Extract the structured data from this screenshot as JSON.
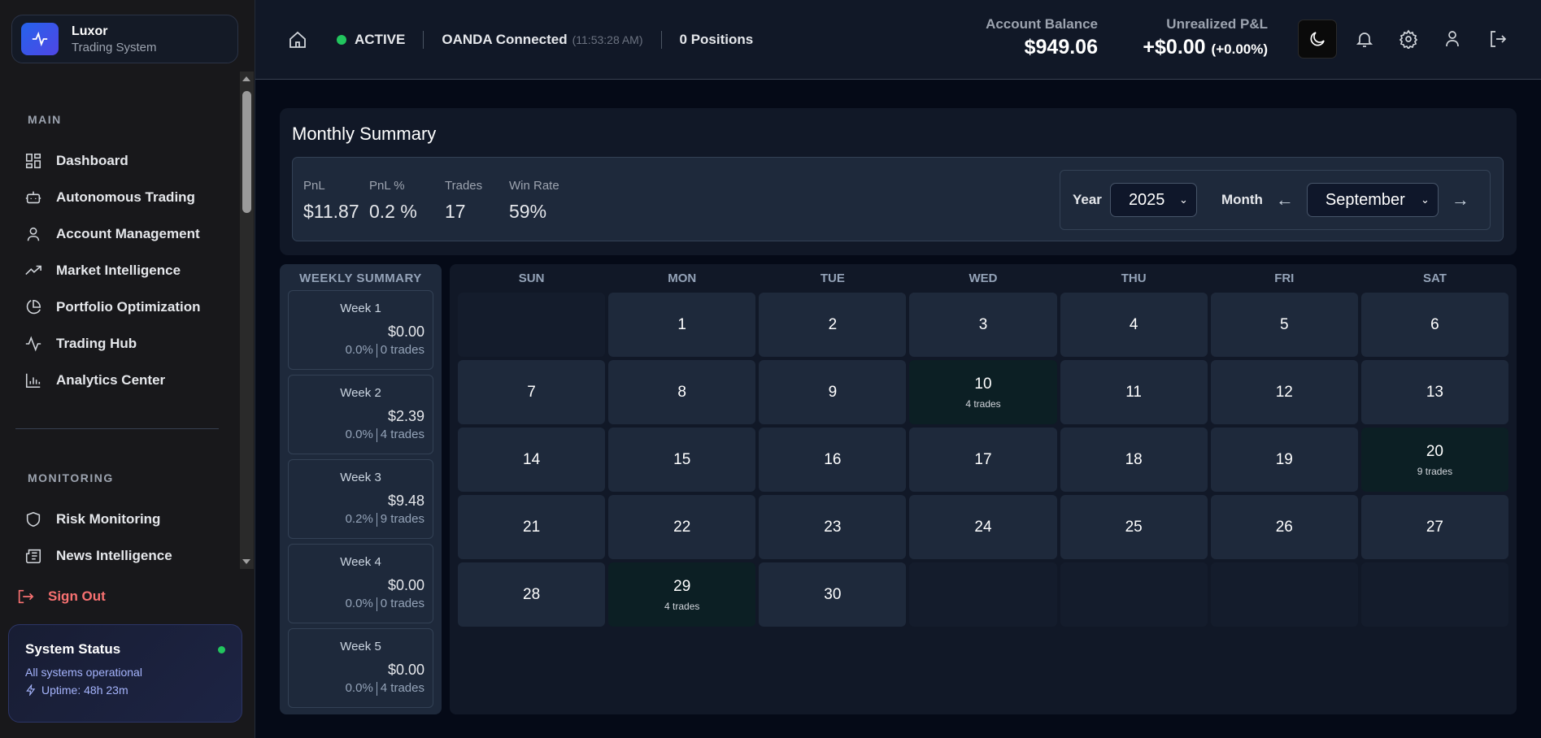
{
  "brand": {
    "name": "Luxor",
    "subtitle": "Trading System",
    "accent": "#2563eb"
  },
  "sidebar": {
    "main_label": "MAIN",
    "main_items": [
      {
        "label": "Dashboard",
        "icon": "dashboard-grid-icon"
      },
      {
        "label": "Autonomous Trading",
        "icon": "robot-icon"
      },
      {
        "label": "Account Management",
        "icon": "user-icon"
      },
      {
        "label": "Market Intelligence",
        "icon": "trending-up-icon"
      },
      {
        "label": "Portfolio Optimization",
        "icon": "pie-chart-icon"
      },
      {
        "label": "Trading Hub",
        "icon": "activity-icon"
      },
      {
        "label": "Analytics Center",
        "icon": "bar-chart-icon"
      }
    ],
    "monitoring_label": "MONITORING",
    "monitoring_items": [
      {
        "label": "Risk Monitoring",
        "icon": "shield-icon"
      },
      {
        "label": "News Intelligence",
        "icon": "newspaper-icon"
      }
    ],
    "sign_out": "Sign Out",
    "status": {
      "title": "System Status",
      "message": "All systems operational",
      "uptime": "Uptime: 48h 23m",
      "color": "#22c55e"
    }
  },
  "header": {
    "status": "ACTIVE",
    "broker": "OANDA Connected",
    "time": "(11:53:28 AM)",
    "positions": "0 Positions",
    "balance_label": "Account Balance",
    "balance": "$949.06",
    "pnl_label": "Unrealized P&L",
    "pnl": "+$0.00",
    "pnl_pct": "(+0.00%)"
  },
  "monthly": {
    "title": "Monthly Summary",
    "metrics": [
      {
        "label": "PnL",
        "value": "$11.87",
        "positive": true
      },
      {
        "label": "PnL %",
        "value": "0.2 %",
        "positive": true
      },
      {
        "label": "Trades",
        "value": "17",
        "positive": false
      },
      {
        "label": "Win Rate",
        "value": "59%",
        "positive": false
      }
    ],
    "year_label": "Year",
    "year": "2025",
    "month_label": "Month",
    "month": "September",
    "prev": "←",
    "next": "→"
  },
  "weekly": {
    "title": "WEEKLY SUMMARY",
    "weeks": [
      {
        "label": "Week 1",
        "pnl": "$0.00",
        "pct": "0.0%",
        "trades": "0 trades",
        "positive": false
      },
      {
        "label": "Week 2",
        "pnl": "$2.39",
        "pct": "0.0%",
        "trades": "4 trades",
        "positive": true
      },
      {
        "label": "Week 3",
        "pnl": "$9.48",
        "pct": "0.2%",
        "trades": "9 trades",
        "positive": true
      },
      {
        "label": "Week 4",
        "pnl": "$0.00",
        "pct": "0.0%",
        "trades": "0 trades",
        "positive": false
      },
      {
        "label": "Week 5",
        "pnl": "$0.00",
        "pct": "0.0%",
        "trades": "4 trades",
        "positive": false
      }
    ]
  },
  "calendar": {
    "weekdays": [
      "SUN",
      "MON",
      "TUE",
      "WED",
      "THU",
      "FRI",
      "SAT"
    ],
    "leading_blanks": 1,
    "days": 30,
    "trade_days": {
      "10": "4 trades",
      "20": "9 trades",
      "29": "4 trades"
    }
  }
}
